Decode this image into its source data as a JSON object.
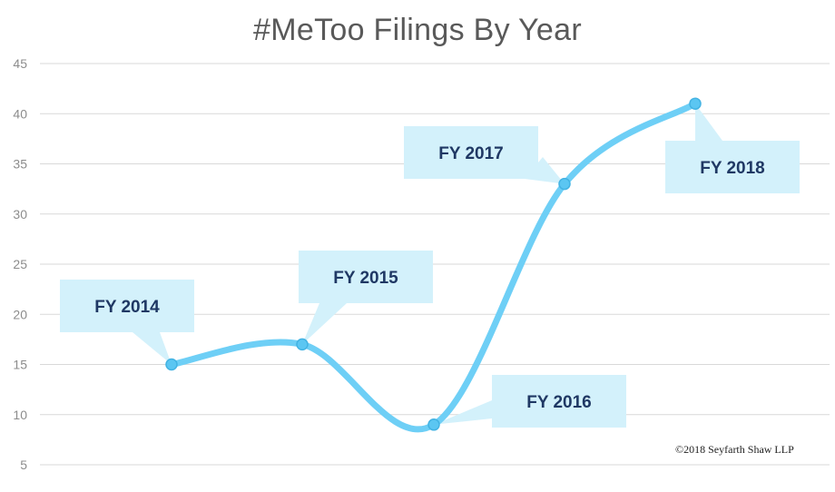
{
  "chart_data": {
    "type": "line",
    "title": "#MeToo Filings By Year",
    "categories": [
      "FY 2014",
      "FY 2015",
      "FY 2016",
      "FY 2017",
      "FY 2018"
    ],
    "series": [
      {
        "values": [
          15,
          17,
          9,
          33,
          41
        ]
      }
    ],
    "ylim": [
      5,
      45
    ],
    "yticks": [
      5,
      10,
      15,
      20,
      25,
      30,
      35,
      40,
      45
    ],
    "grid": true,
    "smooth": true,
    "line_color": "#6ecff6",
    "label_bg_color": "#d3f1fb",
    "label_text_color": "#1f3864"
  },
  "copyright": "©2018  Seyfarth Shaw LLP"
}
